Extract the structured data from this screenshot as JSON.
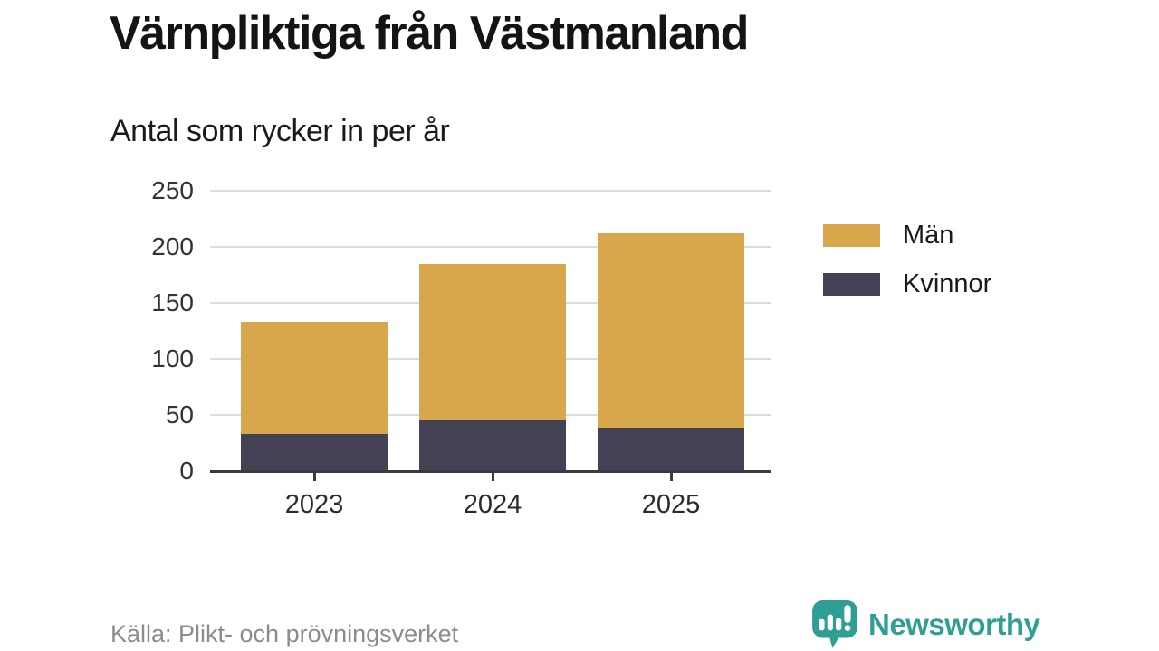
{
  "title": "Värnpliktiga från Västmanland",
  "subtitle": "Antal som rycker in per år",
  "footer": {
    "source": "Källa: Plikt- och prövningsverket",
    "brand_name": "Newsworthy",
    "brand_icon": "speech-bubble-bar-chart-exclamation-icon"
  },
  "colors": {
    "men": "#D8A74C",
    "women": "#424254",
    "brand_teal": "#2F9E94",
    "gridline": "#DCDCDC",
    "axis_line": "#3B3B3B",
    "tick_text": "#333333",
    "source_text": "#8C8C8C",
    "background": "#FFFFFF"
  },
  "chart_data": {
    "type": "bar",
    "stacked": true,
    "title": "Värnpliktiga från Västmanland",
    "subtitle": "Antal som rycker in per år",
    "categories": [
      "2023",
      "2024",
      "2025"
    ],
    "series": [
      {
        "name": "Män",
        "color": "#D8A74C",
        "values": [
          100,
          139,
          173
        ]
      },
      {
        "name": "Kvinnor",
        "color": "#424254",
        "values": [
          33,
          46,
          39
        ]
      }
    ],
    "stack_order_bottom_to_top": [
      "Kvinnor",
      "Män"
    ],
    "stacked_totals": [
      133,
      185,
      212
    ],
    "xlabel": "",
    "ylabel": "",
    "ylim": [
      0,
      250
    ],
    "yticks": [
      0,
      50,
      100,
      150,
      200,
      250
    ],
    "grid": true,
    "legend_position": "right"
  }
}
